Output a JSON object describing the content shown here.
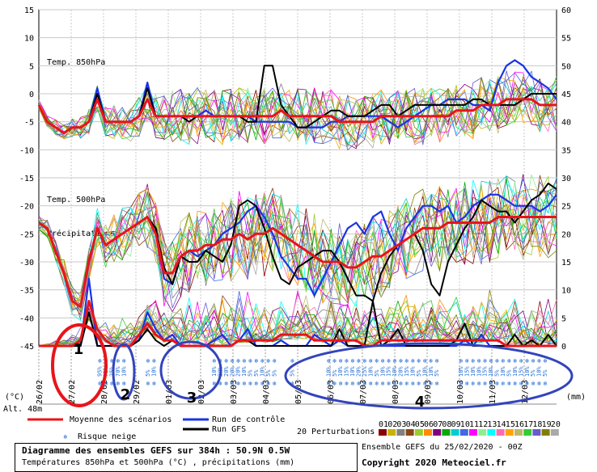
{
  "chart_data": {
    "type": "line",
    "left_axis_ticks": [
      "15",
      "10",
      "5",
      "0",
      "-5",
      "-10",
      "-15",
      "-20",
      "-25",
      "-30",
      "-35",
      "-40",
      "-45"
    ],
    "right_axis_ticks": [
      "60",
      "55",
      "50",
      "45",
      "40",
      "35",
      "30",
      "25",
      "20",
      "15",
      "10",
      "5",
      "0"
    ],
    "unit_left": "(°C)",
    "unit_right": "(mm)",
    "altitude": "Alt. 48m",
    "x_dates": [
      "26/02",
      "27/02",
      "28/02",
      "29/02",
      "01/03",
      "02/03",
      "03/03",
      "04/03",
      "05/03",
      "06/03",
      "07/03",
      "08/03",
      "09/03",
      "10/03",
      "11/03",
      "12/03"
    ],
    "panel_labels": {
      "t850": "Temp. 850hPa",
      "t500": "Temp. 500hPa",
      "precip": "Précipitations"
    },
    "mean_850": [
      -2,
      -5,
      -6,
      -7,
      -6,
      -6,
      -5,
      -1,
      -5,
      -5,
      -5,
      -5,
      -4,
      -1,
      -4,
      -4,
      -4,
      -4,
      -4,
      -4,
      -4,
      -4,
      -4,
      -4,
      -4,
      -4,
      -4,
      -4,
      -4,
      -3,
      -4,
      -4,
      -4,
      -4,
      -4,
      -4,
      -5,
      -5,
      -5,
      -5,
      -5,
      -4,
      -4,
      -4,
      -4,
      -4,
      -4,
      -4,
      -4,
      -4,
      -3,
      -3,
      -3,
      -2,
      -2,
      -2,
      -1,
      -1,
      -1,
      -1,
      -2,
      -2,
      -2
    ],
    "control_850": [
      -2,
      -5,
      -6,
      -7,
      -6,
      -6,
      -5,
      1,
      -5,
      -5,
      -5,
      -5,
      -4,
      2,
      -4,
      -4,
      -4,
      -4,
      -4,
      -4,
      -3,
      -4,
      -4,
      -4,
      -4,
      -4,
      -5,
      -5,
      -5,
      -5,
      -5,
      -6,
      -6,
      -6,
      -6,
      -5,
      -5,
      -4,
      -4,
      -4,
      -4,
      -4,
      -5,
      -6,
      -5,
      -4,
      -3,
      -2,
      -2,
      -1,
      -1,
      -1,
      -2,
      -2,
      -3,
      2,
      5,
      6,
      5,
      3,
      2,
      1,
      -1
    ],
    "gfs_850": [
      -2,
      -5,
      -6,
      -7,
      -6,
      -6,
      -5,
      0,
      -5,
      -5,
      -5,
      -5,
      -4,
      1,
      -4,
      -4,
      -4,
      -4,
      -5,
      -4,
      -4,
      -4,
      -4,
      -4,
      -4,
      -5,
      -5,
      5,
      5,
      -2,
      -4,
      -6,
      -6,
      -5,
      -4,
      -3,
      -3,
      -4,
      -4,
      -4,
      -3,
      -2,
      -2,
      -4,
      -3,
      -2,
      -2,
      -2,
      -2,
      -2,
      -2,
      -2,
      -1,
      -1,
      -2,
      -2,
      -2,
      -2,
      -1,
      0,
      0,
      0,
      0
    ],
    "mean_500": [
      -23,
      -24,
      -28,
      -32,
      -37,
      -38,
      -30,
      -24,
      -27,
      -26,
      -25,
      -24,
      -23,
      -22,
      -25,
      -32,
      -32,
      -29,
      -28,
      -28,
      -27,
      -27,
      -26,
      -26,
      -25,
      -26,
      -25,
      -25,
      -24,
      -25,
      -26,
      -27,
      -28,
      -29,
      -30,
      -30,
      -30,
      -31,
      -31,
      -30,
      -29,
      -29,
      -28,
      -27,
      -26,
      -25,
      -24,
      -24,
      -24,
      -23,
      -23,
      -23,
      -23,
      -23,
      -23,
      -22,
      -22,
      -22,
      -22,
      -22,
      -22,
      -22,
      -22
    ],
    "control_500": [
      -23,
      -24,
      -28,
      -32,
      -37,
      -38,
      -30,
      -24,
      -27,
      -26,
      -25,
      -24,
      -23,
      -22,
      -24,
      -33,
      -34,
      -29,
      -28,
      -29,
      -28,
      -27,
      -25,
      -24,
      -23,
      -21,
      -20,
      -22,
      -25,
      -29,
      -31,
      -33,
      -33,
      -36,
      -33,
      -30,
      -27,
      -24,
      -23,
      -25,
      -22,
      -21,
      -25,
      -28,
      -24,
      -22,
      -20,
      -20,
      -21,
      -20,
      -23,
      -22,
      -20,
      -19,
      -18,
      -18,
      -19,
      -20,
      -20,
      -20,
      -21,
      -20,
      -18
    ],
    "gfs_500": [
      -23,
      -24,
      -28,
      -32,
      -37,
      -38,
      -30,
      -24,
      -27,
      -26,
      -25,
      -24,
      -23,
      -22,
      -24,
      -31,
      -34,
      -29,
      -30,
      -30,
      -28,
      -29,
      -30,
      -27,
      -20,
      -19,
      -20,
      -24,
      -29,
      -33,
      -34,
      -31,
      -30,
      -29,
      -28,
      -28,
      -30,
      -33,
      -36,
      -36,
      -37,
      -32,
      -29,
      -27,
      -26,
      -25,
      -28,
      -34,
      -36,
      -30,
      -27,
      -24,
      -22,
      -19,
      -20,
      -21,
      -21,
      -23,
      -21,
      -19,
      -18,
      -16,
      -17
    ],
    "mean_precip": [
      0,
      0,
      0,
      0,
      0,
      1,
      8,
      3,
      1,
      0,
      0,
      0,
      2,
      4,
      2,
      1,
      1,
      0,
      0,
      0,
      0,
      0,
      0,
      0,
      1,
      1,
      1,
      1,
      1,
      2,
      2,
      2,
      2,
      1,
      1,
      1,
      1,
      1,
      1,
      0,
      0,
      1,
      1,
      1,
      1,
      1,
      1,
      1,
      1,
      1,
      1,
      1,
      1,
      1,
      1,
      1,
      0,
      0,
      0,
      0,
      0,
      0,
      0
    ],
    "control_precip": [
      0,
      0,
      0,
      0,
      0,
      0,
      12,
      0,
      0,
      0,
      0,
      0,
      1,
      6,
      3,
      1,
      2,
      0,
      0,
      0,
      0,
      1,
      2,
      0,
      1,
      3,
      0,
      0,
      0,
      1,
      0,
      0,
      0,
      2,
      1,
      0,
      1,
      0,
      0,
      0,
      0,
      0,
      0,
      0,
      0,
      0,
      0,
      0,
      0,
      0,
      0,
      1,
      0,
      2,
      0,
      0,
      0,
      0,
      0,
      0,
      0,
      0,
      0
    ],
    "gfs_precip": [
      0,
      0,
      0,
      0,
      0,
      0,
      6,
      0,
      0,
      0,
      0,
      0,
      1,
      3,
      1,
      0,
      1,
      0,
      0,
      0,
      0,
      0,
      0,
      0,
      1,
      1,
      0,
      0,
      0,
      0,
      0,
      0,
      0,
      0,
      0,
      0,
      3,
      0,
      0,
      0,
      8,
      0,
      1,
      3,
      0,
      0,
      0,
      0,
      0,
      0,
      1,
      4,
      0,
      0,
      0,
      0,
      0,
      2,
      0,
      1,
      0,
      2,
      0
    ],
    "snow_risk": [
      {
        "i": 6,
        "p": "95%"
      },
      {
        "i": 7,
        "p": "75%"
      },
      {
        "i": 8,
        "p": "25%"
      },
      {
        "i": 9,
        "p": "70%"
      },
      {
        "i": 10,
        "p": "10%"
      },
      {
        "i": 14,
        "p": "5%"
      },
      {
        "i": 15,
        "p": "10%"
      },
      {
        "i": 25,
        "p": "10%"
      },
      {
        "i": 26,
        "p": "20%"
      },
      {
        "i": 27,
        "p": "20%"
      },
      {
        "i": 28,
        "p": "20%"
      },
      {
        "i": 29,
        "p": "20%"
      },
      {
        "i": 30,
        "p": "10%"
      },
      {
        "i": 31,
        "p": "5%"
      },
      {
        "i": 32,
        "p": "5%"
      },
      {
        "i": 33,
        "p": "10%"
      },
      {
        "i": 34,
        "p": "5%"
      },
      {
        "i": 35,
        "p": "5%"
      },
      {
        "i": 38,
        "p": "5%"
      },
      {
        "i": 44,
        "p": "10%"
      },
      {
        "i": 45,
        "p": "5%"
      },
      {
        "i": 46,
        "p": "10%"
      },
      {
        "i": 47,
        "p": "15%"
      },
      {
        "i": 48,
        "p": "10%"
      },
      {
        "i": 49,
        "p": "20%"
      },
      {
        "i": 50,
        "p": "25%"
      },
      {
        "i": 51,
        "p": "10%"
      },
      {
        "i": 52,
        "p": "5%"
      },
      {
        "i": 53,
        "p": "10%"
      },
      {
        "i": 54,
        "p": "15%"
      },
      {
        "i": 55,
        "p": "10%"
      },
      {
        "i": 56,
        "p": "20%"
      },
      {
        "i": 57,
        "p": "15%"
      },
      {
        "i": 58,
        "p": "10%"
      },
      {
        "i": 59,
        "p": "5%"
      },
      {
        "i": 60,
        "p": "10%"
      },
      {
        "i": 61,
        "p": "10%"
      },
      {
        "i": 62,
        "p": "5%"
      },
      {
        "i": 66,
        "p": "10%"
      },
      {
        "i": 67,
        "p": "15%"
      },
      {
        "i": 68,
        "p": "10%"
      },
      {
        "i": 69,
        "p": "10%"
      },
      {
        "i": 70,
        "p": "15%"
      },
      {
        "i": 71,
        "p": "10%"
      },
      {
        "i": 72,
        "p": "5%"
      },
      {
        "i": 73,
        "p": "10%"
      },
      {
        "i": 74,
        "p": "5%"
      },
      {
        "i": 75,
        "p": "10%"
      },
      {
        "i": 76,
        "p": "15%"
      },
      {
        "i": 77,
        "p": "10%"
      },
      {
        "i": 78,
        "p": "5%"
      },
      {
        "i": 79,
        "p": "10%"
      },
      {
        "i": 80,
        "p": "5%"
      }
    ],
    "annotations": [
      {
        "label": "1",
        "color": "#e8141a"
      },
      {
        "label": "2",
        "color": "#3344bb"
      },
      {
        "label": "3",
        "color": "#3344bb"
      },
      {
        "label": "4",
        "color": "#3344bb"
      }
    ],
    "colors": {
      "mean": "#e8141a",
      "control": "#1a33e6",
      "gfs": "#000000",
      "snow": "#1e6bd6",
      "annotation_blue": "#3344bb",
      "annotation_red": "#e8141a"
    },
    "perturbation_colors": [
      "#8b0000",
      "#c8b400",
      "#808080",
      "#8b4513",
      "#9acd32",
      "#ff8c00",
      "#800080",
      "#00aa00",
      "#00ced1",
      "#4169e1",
      "#ff00ff",
      "#90ee90",
      "#00ffff",
      "#ff69b4",
      "#ffa500",
      "#bdb76b",
      "#32cd32",
      "#6a5acd",
      "#808000",
      "#a9a9a9"
    ]
  },
  "legend": {
    "mean": "Moyenne des scénarios",
    "control": "Run de contrôle",
    "gfs": "Run GFS",
    "snow": "Risque neige",
    "perturbations": "20 Perturbations",
    "perturbation_ids": [
      "01",
      "02",
      "03",
      "04",
      "05",
      "06",
      "07",
      "08",
      "09",
      "10",
      "11",
      "12",
      "13",
      "14",
      "15",
      "16",
      "17",
      "18",
      "19",
      "20"
    ]
  },
  "footer": {
    "title": "Diagramme des ensembles GEFS sur 384h : 50.9N 0.5W",
    "subtitle": "Températures 850hPa et 500hPa (°C) , précipitations (mm)",
    "run": "Ensemble GEFS du 25/02/2020 - 00Z",
    "copyright": "Copyright 2020 Meteociel.fr"
  }
}
